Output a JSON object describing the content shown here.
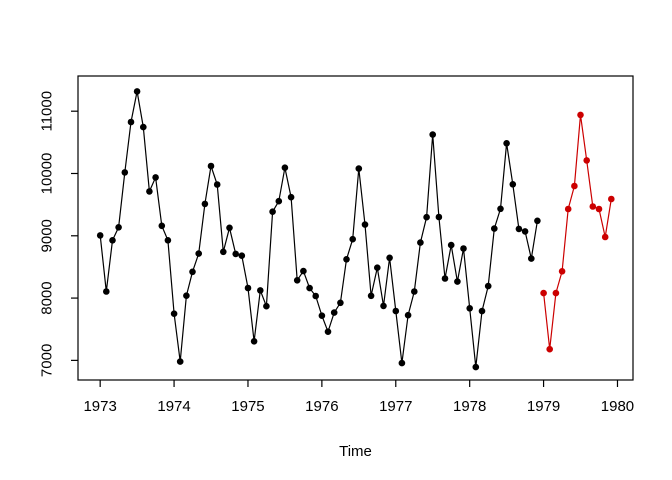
{
  "figure": {
    "background": "#ffffff",
    "axis_color": "#000000"
  },
  "chart_data": {
    "type": "line",
    "title": "",
    "xlabel": "Time",
    "ylabel": "",
    "grid": false,
    "legend": "none",
    "frequency": 12,
    "x_ticks": [
      "1973",
      "1974",
      "1975",
      "1976",
      "1977",
      "1978",
      "1979",
      "1980"
    ],
    "y_ticks": [
      "7000",
      "8000",
      "9000",
      "10000",
      "11000"
    ],
    "xlim": [
      1972.7,
      1980.21
    ],
    "ylim": [
      6685,
      11565
    ],
    "series": [
      {
        "name": "observed",
        "color": "#000000",
        "marker": "filled-circle",
        "start": 1973.0,
        "values": [
          9007,
          8106,
          8928,
          9137,
          10017,
          10826,
          11317,
          10744,
          9713,
          9938,
          9161,
          8927,
          7750,
          6981,
          8038,
          8422,
          8714,
          9512,
          10120,
          9823,
          8743,
          9129,
          8710,
          8680,
          8162,
          7306,
          8124,
          7870,
          9387,
          9556,
          10093,
          9620,
          8285,
          8433,
          8160,
          8034,
          7717,
          7461,
          7767,
          7925,
          8623,
          8945,
          10078,
          9179,
          8037,
          8488,
          7874,
          8647,
          7792,
          6957,
          7726,
          8106,
          8890,
          9299,
          10625,
          9302,
          8314,
          8850,
          8265,
          8796,
          7836,
          6892,
          7791,
          8192,
          9115,
          9434,
          10484,
          9827,
          9110,
          9070,
          8633,
          9240
        ]
      },
      {
        "name": "forecast",
        "color": "#CC0000",
        "marker": "filled-circle",
        "start": 1979.0,
        "values": [
          8080,
          7180,
          8080,
          8430,
          9430,
          9800,
          10940,
          10210,
          9470,
          9430,
          8980,
          9590
        ]
      }
    ]
  }
}
